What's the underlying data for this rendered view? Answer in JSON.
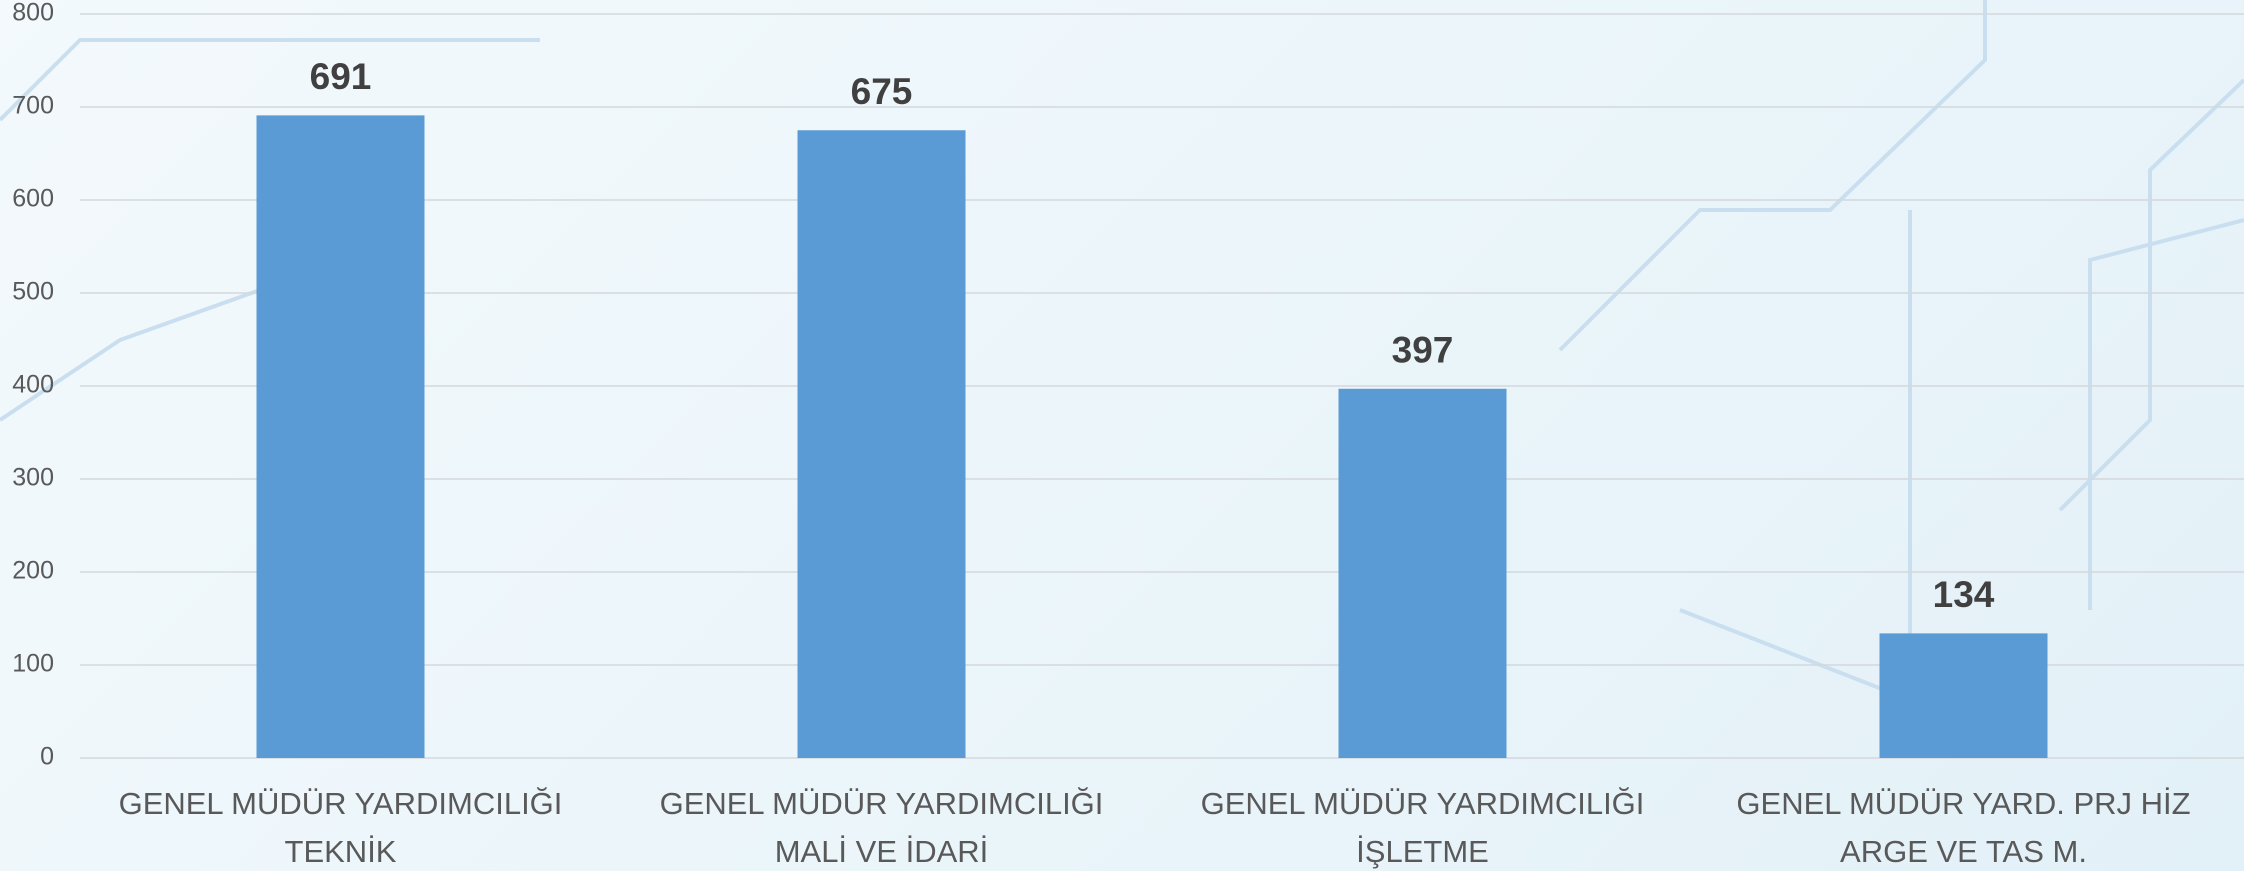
{
  "chart_data": {
    "type": "bar",
    "categories": [
      [
        "GENEL MÜDÜR YARDIMCILIĞI",
        "TEKNİK"
      ],
      [
        "GENEL MÜDÜR YARDIMCILIĞI",
        "MALİ VE İDARİ"
      ],
      [
        "GENEL MÜDÜR YARDIMCILIĞI",
        "İŞLETME"
      ],
      [
        "GENEL MÜDÜR YARD. PRJ HİZ",
        "ARGE VE TAS M."
      ]
    ],
    "values": [
      691,
      675,
      397,
      134
    ],
    "color": "#5b9bd5",
    "ylim": [
      0,
      800
    ],
    "yticks": [
      0,
      100,
      200,
      300,
      400,
      500,
      600,
      700,
      800
    ],
    "grid": true
  }
}
